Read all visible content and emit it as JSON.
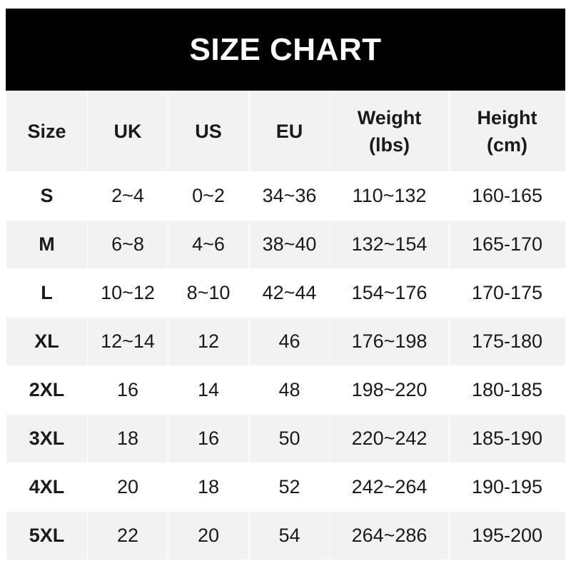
{
  "title": "SIZE CHART",
  "headers": [
    {
      "line1": "Size",
      "line2": ""
    },
    {
      "line1": "UK",
      "line2": ""
    },
    {
      "line1": "US",
      "line2": ""
    },
    {
      "line1": "EU",
      "line2": ""
    },
    {
      "line1": "Weight",
      "line2": "(lbs)"
    },
    {
      "line1": "Height",
      "line2": "(cm)"
    }
  ],
  "rows": [
    [
      "S",
      "2~4",
      "0~2",
      "34~36",
      "110~132",
      "160-165"
    ],
    [
      "M",
      "6~8",
      "4~6",
      "38~40",
      "132~154",
      "165-170"
    ],
    [
      "L",
      "10~12",
      "8~10",
      "42~44",
      "154~176",
      "170-175"
    ],
    [
      "XL",
      "12~14",
      "12",
      "46",
      "176~198",
      "175-180"
    ],
    [
      "2XL",
      "16",
      "14",
      "48",
      "198~220",
      "180-185"
    ],
    [
      "3XL",
      "18",
      "16",
      "50",
      "220~242",
      "185-190"
    ],
    [
      "4XL",
      "20",
      "18",
      "52",
      "242~264",
      "190-195"
    ],
    [
      "5XL",
      "22",
      "20",
      "54",
      "264~286",
      "195-200"
    ]
  ],
  "colors": {
    "banner": "#000000",
    "stripe": "#f2f2f2"
  }
}
